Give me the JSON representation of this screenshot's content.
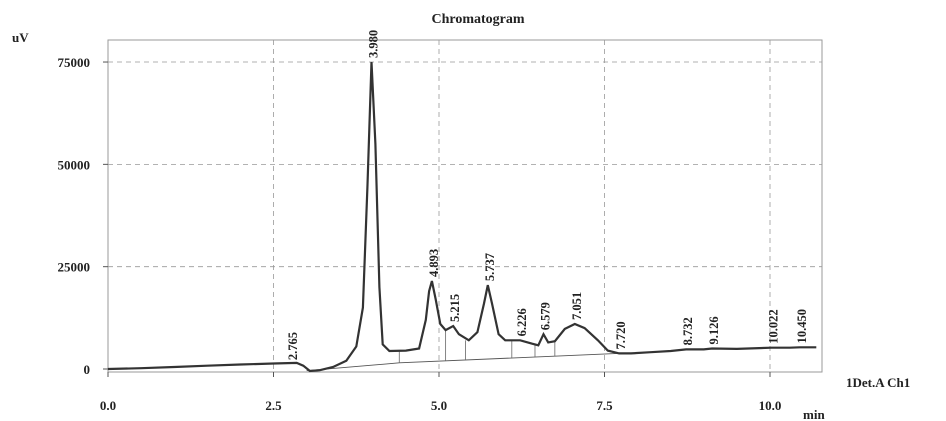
{
  "chart_data": {
    "type": "line",
    "title": "Chromatogram",
    "ylabel": "uV",
    "xlabel": "min",
    "series_label": "1Det.A Ch1",
    "xlim": [
      0,
      10.7
    ],
    "ylim": [
      -2000,
      79000
    ],
    "x_ticks": [
      0,
      2.5,
      5,
      7.5,
      10
    ],
    "x_tick_labels": [
      "0.0",
      "2.5",
      "5.0",
      "7.5",
      "10.0"
    ],
    "y_ticks": [
      0,
      25000,
      50000,
      75000
    ],
    "y_tick_labels": [
      "0",
      "25000",
      "50000",
      "75000"
    ],
    "grid": true,
    "peaks": [
      {
        "label": "2.765",
        "x": 2.765,
        "y": 1200
      },
      {
        "label": "3.980",
        "x": 3.98,
        "y": 75000
      },
      {
        "label": "4.893",
        "x": 4.893,
        "y": 21500
      },
      {
        "label": "5.215",
        "x": 5.215,
        "y": 10500
      },
      {
        "label": "5.737",
        "x": 5.737,
        "y": 20500
      },
      {
        "label": "6.226",
        "x": 6.226,
        "y": 7000
      },
      {
        "label": "6.579",
        "x": 6.579,
        "y": 8500
      },
      {
        "label": "7.051",
        "x": 7.051,
        "y": 11000
      },
      {
        "label": "7.720",
        "x": 7.72,
        "y": 3800
      },
      {
        "label": "8.732",
        "x": 8.732,
        "y": 4800
      },
      {
        "label": "9.126",
        "x": 9.126,
        "y": 5000
      },
      {
        "label": "10.022",
        "x": 10.022,
        "y": 5200
      },
      {
        "label": "10.450",
        "x": 10.45,
        "y": 5300
      }
    ],
    "trace": [
      [
        0.0,
        0
      ],
      [
        0.5,
        200
      ],
      [
        1.0,
        500
      ],
      [
        1.5,
        800
      ],
      [
        2.0,
        1100
      ],
      [
        2.5,
        1350
      ],
      [
        2.85,
        1500
      ],
      [
        2.95,
        800
      ],
      [
        3.05,
        -500
      ],
      [
        3.2,
        -300
      ],
      [
        3.4,
        500
      ],
      [
        3.6,
        2000
      ],
      [
        3.75,
        5500
      ],
      [
        3.85,
        15000
      ],
      [
        3.92,
        45000
      ],
      [
        3.98,
        75000
      ],
      [
        4.04,
        55000
      ],
      [
        4.1,
        20000
      ],
      [
        4.15,
        6000
      ],
      [
        4.25,
        4400
      ],
      [
        4.5,
        4500
      ],
      [
        4.7,
        5000
      ],
      [
        4.8,
        12000
      ],
      [
        4.85,
        19000
      ],
      [
        4.893,
        21500
      ],
      [
        4.95,
        17000
      ],
      [
        5.02,
        11000
      ],
      [
        5.1,
        9500
      ],
      [
        5.215,
        10500
      ],
      [
        5.3,
        8500
      ],
      [
        5.45,
        7000
      ],
      [
        5.58,
        9000
      ],
      [
        5.68,
        16000
      ],
      [
        5.737,
        20500
      ],
      [
        5.8,
        16000
      ],
      [
        5.9,
        8500
      ],
      [
        6.0,
        7000
      ],
      [
        6.226,
        7000
      ],
      [
        6.4,
        6200
      ],
      [
        6.5,
        5800
      ],
      [
        6.579,
        8500
      ],
      [
        6.65,
        6500
      ],
      [
        6.75,
        6800
      ],
      [
        6.9,
        9800
      ],
      [
        7.051,
        11000
      ],
      [
        7.2,
        10000
      ],
      [
        7.4,
        7000
      ],
      [
        7.55,
        4500
      ],
      [
        7.72,
        3800
      ],
      [
        7.9,
        3800
      ],
      [
        8.2,
        4100
      ],
      [
        8.5,
        4400
      ],
      [
        8.732,
        4800
      ],
      [
        9.0,
        4800
      ],
      [
        9.126,
        5000
      ],
      [
        9.5,
        4900
      ],
      [
        10.022,
        5200
      ],
      [
        10.3,
        5200
      ],
      [
        10.45,
        5300
      ],
      [
        10.7,
        5300
      ]
    ],
    "baselines": [
      {
        "x1": 3.0,
        "y1": -400,
        "x2": 4.4,
        "y2": 1500
      },
      {
        "x1": 4.4,
        "y1": 1500,
        "x2": 7.7,
        "y2": 3800
      }
    ],
    "drops": [
      4.4,
      5.1,
      5.4,
      6.1,
      6.45,
      6.75,
      7.7
    ]
  }
}
